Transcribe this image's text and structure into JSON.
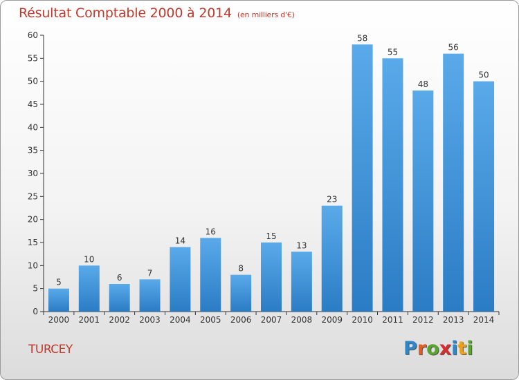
{
  "header": {
    "title": "Résultat Comptable 2000 à 2014",
    "subtitle": "(en milliers d'€)"
  },
  "footer": {
    "town": "TURCEY",
    "logo_letters": [
      "P",
      "r",
      "o",
      "x",
      "i",
      "t",
      "i"
    ],
    "logo_colors": [
      "#2f86c8",
      "#e85d1f",
      "#5aa52f",
      "#d62e2e",
      "#2f86c8",
      "#e8a21f",
      "#5aa52f"
    ]
  },
  "colors": {
    "bar": "#4a9ee0",
    "bar_dark": "#2a7cc4",
    "title": "#c0392b",
    "axis": "#333333",
    "grid": "#cfcfcf"
  },
  "chart_data": {
    "type": "bar",
    "categories": [
      "2000",
      "2001",
      "2002",
      "2003",
      "2004",
      "2005",
      "2006",
      "2007",
      "2008",
      "2009",
      "2010",
      "2011",
      "2012",
      "2013",
      "2014"
    ],
    "values": [
      5,
      10,
      6,
      7,
      14,
      16,
      8,
      15,
      13,
      23,
      58,
      55,
      48,
      56,
      50
    ],
    "data_labels": [
      "5",
      "10",
      "6",
      "7",
      "14",
      "16",
      "8",
      "15",
      "13",
      "23",
      "58",
      "55",
      "48",
      "56",
      "50"
    ],
    "title": "Résultat Comptable 2000 à 2014",
    "xlabel": "",
    "ylabel": "",
    "ylim": [
      0,
      60
    ],
    "yticks": [
      0,
      5,
      10,
      15,
      20,
      25,
      30,
      35,
      40,
      45,
      50,
      55,
      60
    ],
    "ytick_labels": [
      "0",
      "5",
      "10",
      "15",
      "20",
      "25",
      "30",
      "35",
      "40",
      "45",
      "50",
      "55",
      "60"
    ],
    "grid": false,
    "legend": "none"
  }
}
